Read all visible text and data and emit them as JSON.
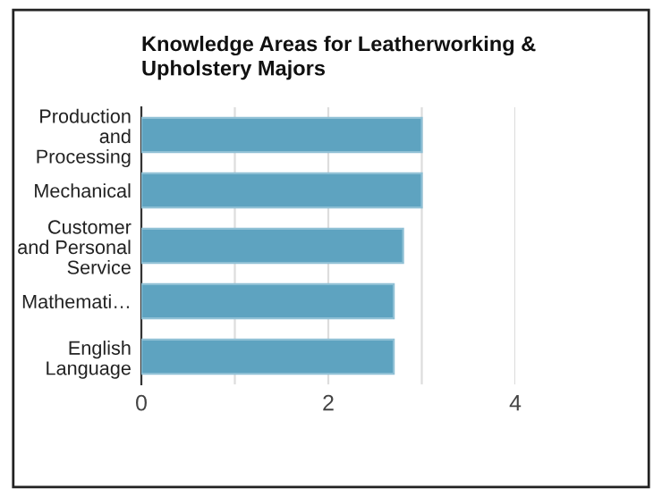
{
  "chart_data": {
    "type": "bar",
    "orientation": "horizontal",
    "title": "Knowledge Areas for Leatherworking &\nUpholstery Majors",
    "categories": [
      "Production\nand\nProcessing",
      "Mechanical",
      "Customer\nand Personal\nService",
      "Mathemati…",
      "English\nLanguage"
    ],
    "values": [
      3.0,
      3.0,
      2.8,
      2.7,
      2.7
    ],
    "color": "#5ea3c0",
    "xlim": [
      0,
      4
    ],
    "xticks": [
      0,
      {
        "value": 1,
        "label": null
      },
      2,
      {
        "value": 3,
        "label": null
      },
      4
    ],
    "grid": "x",
    "legend": false
  }
}
